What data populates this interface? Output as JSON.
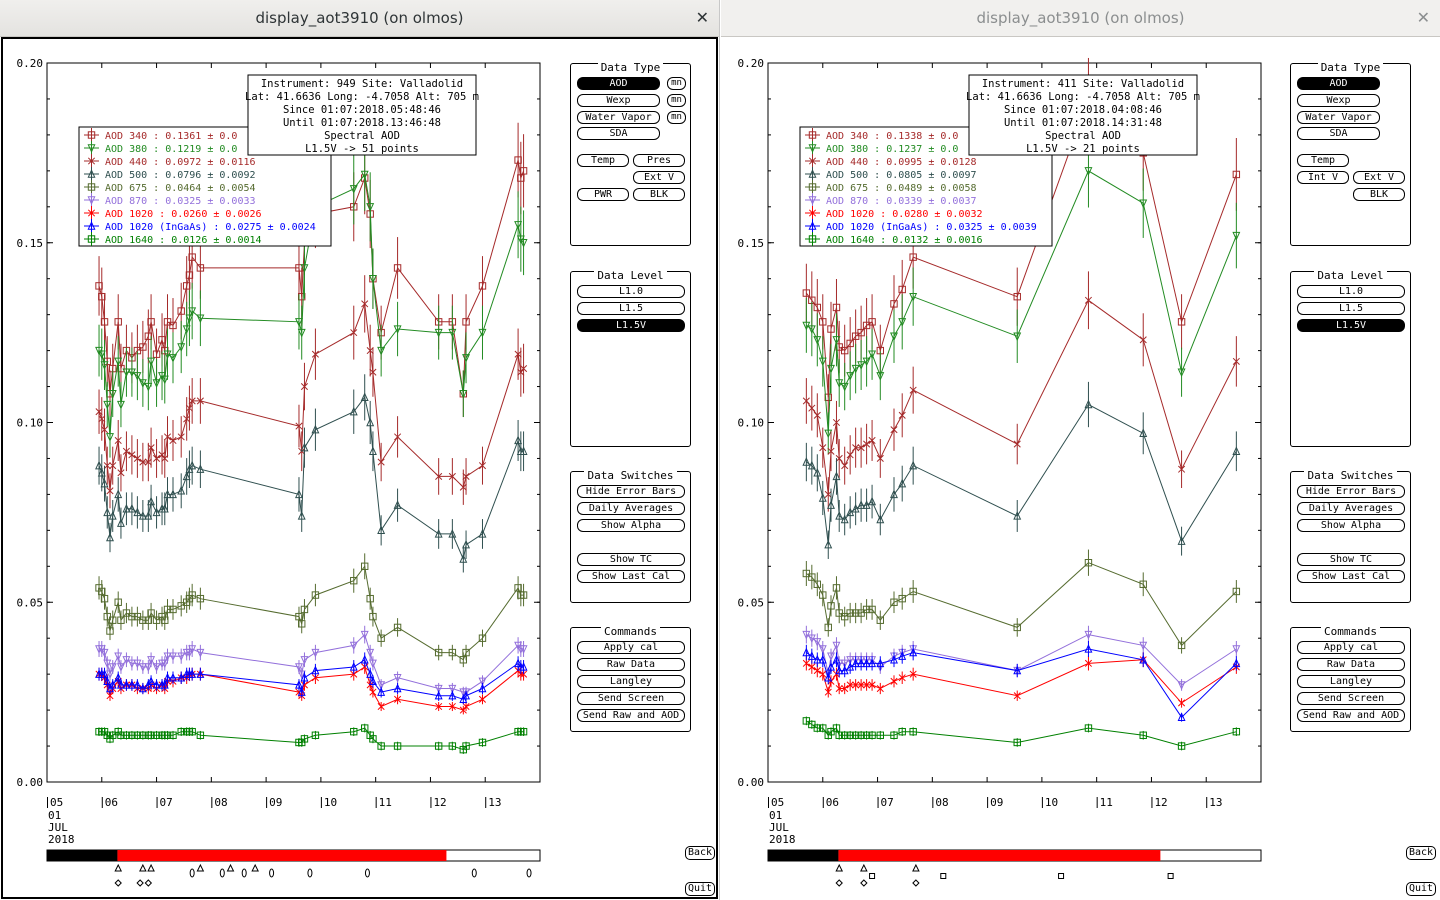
{
  "windows": [
    {
      "title": "display_aot3910 (on olmos)",
      "close_glyph": "✕",
      "info": {
        "line1": "Instrument: 949 Site: Valladolid",
        "line2": "Lat: 41.6636 Long: -4.7058 Alt: 705 m",
        "line3": "Since 01:07:2018.05:48:46",
        "line4": "Until 01:07:2018.13:46:48",
        "line5": "Spectral AOD",
        "line6": "L1.5V -> 51 points"
      },
      "legend": [
        {
          "name": "AOD 340",
          "stat": " : 0.1361 ± 0.0",
          "color": "#a52a2a",
          "marker": "square"
        },
        {
          "name": "AOD 380",
          "stat": " : 0.1219 ± 0.0",
          "color": "#228b22",
          "marker": "tri-down"
        },
        {
          "name": "AOD 440",
          "stat": " : 0.0972 ± 0.0116",
          "color": "#a52a2a",
          "marker": "cross"
        },
        {
          "name": "AOD 500",
          "stat": " : 0.0796 ± 0.0092",
          "color": "#2f4f4f",
          "marker": "tri-up"
        },
        {
          "name": "AOD 675",
          "stat": " : 0.0464 ± 0.0054",
          "color": "#556b2f",
          "marker": "square"
        },
        {
          "name": "AOD 870",
          "stat": " : 0.0325 ± 0.0033",
          "color": "#9370db",
          "marker": "tri-down"
        },
        {
          "name": "AOD 1020",
          "stat": " : 0.0260 ± 0.0026",
          "color": "#ff0000",
          "marker": "cross"
        },
        {
          "name": "AOD 1020 (InGaAs)",
          "stat": " : 0.0275 ± 0.0024",
          "color": "#0000ff",
          "marker": "tri-up"
        },
        {
          "name": "AOD 1640",
          "stat": " : 0.0126 ± 0.0014",
          "color": "#008000",
          "marker": "square"
        }
      ],
      "bar_red": [
        0.1429,
        0.8102
      ]
    },
    {
      "title": "display_aot3910 (on olmos)",
      "close_glyph": "✕",
      "info": {
        "line1": "Instrument: 411 Site: Valladolid",
        "line2": "Lat: 41.6636 Long: -4.7058 Alt: 705 m",
        "line3": "Since 01:07:2018.04:08:46",
        "line4": "Until 01:07:2018.14:31:48",
        "line5": "Spectral AOD",
        "line6": "L1.5V -> 21 points"
      },
      "legend": [
        {
          "name": "AOD 340",
          "stat": " : 0.1338 ± 0.0",
          "color": "#a52a2a",
          "marker": "square"
        },
        {
          "name": "AOD 380",
          "stat": " : 0.1237 ± 0.0",
          "color": "#228b22",
          "marker": "tri-down"
        },
        {
          "name": "AOD 440",
          "stat": " : 0.0995 ± 0.0128",
          "color": "#a52a2a",
          "marker": "cross"
        },
        {
          "name": "AOD 500",
          "stat": " : 0.0805 ± 0.0097",
          "color": "#2f4f4f",
          "marker": "tri-up"
        },
        {
          "name": "AOD 675",
          "stat": " : 0.0489 ± 0.0058",
          "color": "#556b2f",
          "marker": "square"
        },
        {
          "name": "AOD 870",
          "stat": " : 0.0339 ± 0.0037",
          "color": "#9370db",
          "marker": "tri-down"
        },
        {
          "name": "AOD 1020",
          "stat": " : 0.0280 ± 0.0032",
          "color": "#ff0000",
          "marker": "cross"
        },
        {
          "name": "AOD 1020 (InGaAs)",
          "stat": " : 0.0325 ± 0.0039",
          "color": "#0000ff",
          "marker": "tri-up"
        },
        {
          "name": "AOD 1640",
          "stat": " : 0.0132 ± 0.0016",
          "color": "#008000",
          "marker": "square"
        }
      ],
      "bar_red": [
        0.1429,
        0.7959
      ]
    }
  ],
  "axes": {
    "y_ticks": [
      "0.20",
      "0.15",
      "0.10",
      "0.05",
      "0.00"
    ],
    "x_ticks": [
      "05",
      "06",
      "07",
      "08",
      "09",
      "10",
      "11",
      "12",
      "13"
    ],
    "date_lines": [
      "01",
      "JUL",
      "2018"
    ]
  },
  "panels": {
    "data_type": {
      "title": "Data Type",
      "aod": "AOD",
      "wexp": "Wexp",
      "water_vapor": "Water Vapor",
      "sda": "SDA",
      "temp": "Temp",
      "pres": "Pres",
      "ext_v": "Ext V",
      "pwr": "PWR",
      "blk": "BLK",
      "int_v": "Int V",
      "mn": "mn"
    },
    "data_level": {
      "title": "Data Level",
      "l10": "L1.0",
      "l15": "L1.5",
      "l15v": "L1.5V"
    },
    "data_switches": {
      "title": "Data Switches",
      "hide_error_bars": "Hide Error Bars",
      "daily_averages": "Daily Averages",
      "show_alpha": "Show Alpha",
      "show_tc": "Show TC",
      "show_last_cal": "Show Last Cal"
    },
    "commands": {
      "title": "Commands",
      "apply_cal": "Apply cal",
      "raw_data": "Raw Data",
      "langley": "Langley",
      "send_screen": "Send Screen",
      "send_raw_aod": "Send Raw and AOD"
    }
  },
  "nav": {
    "back": "Back",
    "quit": "Quit"
  },
  "chart_data": [
    {
      "type": "line",
      "ylim": [
        0,
        0.2
      ],
      "xlim": [
        5,
        14
      ],
      "x": [
        5.95,
        6.0,
        6.05,
        6.1,
        6.15,
        6.2,
        6.3,
        6.35,
        6.45,
        6.55,
        6.65,
        6.75,
        6.85,
        6.9,
        7.0,
        7.1,
        7.15,
        7.2,
        7.3,
        7.45,
        7.55,
        7.6,
        7.65,
        7.8,
        9.6,
        9.65,
        9.7,
        9.9,
        10.6,
        10.8,
        10.9,
        10.95,
        11.1,
        11.4,
        12.15,
        12.4,
        12.6,
        12.65,
        12.95,
        13.6,
        13.65,
        13.7
      ],
      "series": [
        {
          "name": "AOD 340",
          "color": "#a52a2a",
          "marker": "square",
          "values": [
            0.138,
            0.135,
            0.128,
            0.117,
            0.108,
            0.115,
            0.128,
            0.115,
            0.12,
            0.118,
            0.12,
            0.121,
            0.124,
            0.128,
            0.119,
            0.123,
            0.12,
            0.128,
            0.127,
            0.131,
            0.138,
            0.141,
            0.146,
            0.143,
            0.143,
            0.135,
            0.15,
            0.158,
            0.16,
            0.168,
            0.158,
            0.14,
            0.125,
            0.143,
            0.128,
            0.128,
            0.108,
            0.128,
            0.138,
            0.173,
            0.168,
            0.17
          ]
        },
        {
          "name": "AOD 380",
          "color": "#228b22",
          "marker": "tri-down",
          "values": [
            0.12,
            0.119,
            0.116,
            0.105,
            0.096,
            0.108,
            0.117,
            0.105,
            0.114,
            0.114,
            0.113,
            0.111,
            0.11,
            0.117,
            0.111,
            0.113,
            0.112,
            0.119,
            0.118,
            0.121,
            0.126,
            0.129,
            0.131,
            0.129,
            0.128,
            0.125,
            0.143,
            0.16,
            0.165,
            0.169,
            0.16,
            0.14,
            0.12,
            0.126,
            0.125,
            0.125,
            0.108,
            0.118,
            0.125,
            0.155,
            0.151,
            0.15
          ]
        },
        {
          "name": "AOD 440",
          "color": "#a52a2a",
          "marker": "cross",
          "values": [
            0.103,
            0.101,
            0.098,
            0.088,
            0.081,
            0.088,
            0.095,
            0.086,
            0.092,
            0.091,
            0.09,
            0.089,
            0.089,
            0.093,
            0.09,
            0.091,
            0.09,
            0.096,
            0.095,
            0.096,
            0.101,
            0.104,
            0.106,
            0.106,
            0.099,
            0.092,
            0.11,
            0.119,
            0.125,
            0.133,
            0.12,
            0.114,
            0.089,
            0.096,
            0.085,
            0.085,
            0.082,
            0.085,
            0.088,
            0.119,
            0.114,
            0.115
          ]
        },
        {
          "name": "AOD 500",
          "color": "#2f4f4f",
          "marker": "tri-up",
          "values": [
            0.088,
            0.086,
            0.083,
            0.075,
            0.068,
            0.074,
            0.08,
            0.072,
            0.076,
            0.076,
            0.075,
            0.074,
            0.074,
            0.078,
            0.075,
            0.076,
            0.076,
            0.08,
            0.08,
            0.081,
            0.085,
            0.087,
            0.088,
            0.087,
            0.08,
            0.074,
            0.093,
            0.098,
            0.103,
            0.107,
            0.1,
            0.092,
            0.07,
            0.077,
            0.069,
            0.069,
            0.062,
            0.066,
            0.069,
            0.095,
            0.092,
            0.092
          ]
        },
        {
          "name": "AOD 675",
          "color": "#556b2f",
          "marker": "square",
          "values": [
            0.054,
            0.053,
            0.051,
            0.046,
            0.042,
            0.045,
            0.05,
            0.045,
            0.047,
            0.046,
            0.046,
            0.045,
            0.045,
            0.047,
            0.045,
            0.046,
            0.045,
            0.048,
            0.048,
            0.049,
            0.05,
            0.051,
            0.052,
            0.051,
            0.046,
            0.044,
            0.048,
            0.052,
            0.056,
            0.06,
            0.051,
            0.046,
            0.04,
            0.043,
            0.036,
            0.036,
            0.034,
            0.036,
            0.04,
            0.054,
            0.052,
            0.052
          ]
        },
        {
          "name": "AOD 870",
          "color": "#9370db",
          "marker": "tri-down",
          "values": [
            0.037,
            0.037,
            0.036,
            0.033,
            0.03,
            0.032,
            0.035,
            0.032,
            0.034,
            0.033,
            0.033,
            0.032,
            0.032,
            0.034,
            0.032,
            0.033,
            0.033,
            0.035,
            0.035,
            0.035,
            0.036,
            0.036,
            0.037,
            0.036,
            0.032,
            0.03,
            0.034,
            0.036,
            0.038,
            0.041,
            0.036,
            0.033,
            0.027,
            0.029,
            0.026,
            0.026,
            0.025,
            0.025,
            0.028,
            0.038,
            0.037,
            0.037
          ]
        },
        {
          "name": "AOD 1020",
          "color": "#ff0000",
          "marker": "cross",
          "values": [
            0.03,
            0.03,
            0.029,
            0.027,
            0.024,
            0.026,
            0.028,
            0.026,
            0.027,
            0.027,
            0.026,
            0.026,
            0.026,
            0.027,
            0.026,
            0.027,
            0.026,
            0.028,
            0.028,
            0.029,
            0.029,
            0.03,
            0.03,
            0.03,
            0.025,
            0.024,
            0.027,
            0.029,
            0.03,
            0.032,
            0.027,
            0.025,
            0.021,
            0.023,
            0.021,
            0.021,
            0.02,
            0.021,
            0.023,
            0.031,
            0.03,
            0.03
          ]
        },
        {
          "name": "AOD 1020 (InGaAs)",
          "color": "#0000ff",
          "marker": "tri-up",
          "values": [
            0.03,
            0.03,
            0.03,
            0.028,
            0.026,
            0.027,
            0.029,
            0.027,
            0.027,
            0.027,
            0.027,
            0.026,
            0.027,
            0.028,
            0.027,
            0.027,
            0.027,
            0.029,
            0.029,
            0.029,
            0.03,
            0.03,
            0.03,
            0.03,
            0.027,
            0.025,
            0.029,
            0.031,
            0.032,
            0.034,
            0.03,
            0.028,
            0.025,
            0.026,
            0.024,
            0.024,
            0.023,
            0.024,
            0.026,
            0.033,
            0.032,
            0.032
          ]
        },
        {
          "name": "AOD 1640",
          "color": "#008000",
          "marker": "square",
          "values": [
            0.014,
            0.014,
            0.014,
            0.013,
            0.012,
            0.013,
            0.014,
            0.013,
            0.013,
            0.013,
            0.013,
            0.013,
            0.013,
            0.013,
            0.013,
            0.013,
            0.013,
            0.013,
            0.013,
            0.014,
            0.014,
            0.014,
            0.014,
            0.013,
            0.011,
            0.011,
            0.012,
            0.013,
            0.014,
            0.015,
            0.013,
            0.012,
            0.01,
            0.01,
            0.01,
            0.01,
            0.009,
            0.01,
            0.011,
            0.014,
            0.014,
            0.014
          ]
        }
      ]
    },
    {
      "type": "line",
      "ylim": [
        0,
        0.2
      ],
      "xlim": [
        5,
        14
      ],
      "x": [
        5.7,
        5.8,
        5.9,
        6.0,
        6.1,
        6.15,
        6.25,
        6.3,
        6.4,
        6.5,
        6.6,
        6.7,
        6.8,
        6.9,
        7.05,
        7.3,
        7.45,
        7.65,
        9.55,
        10.85,
        11.85,
        12.55,
        13.55
      ],
      "series": [
        {
          "name": "AOD 340",
          "color": "#a52a2a",
          "marker": "square",
          "values": [
            0.136,
            0.134,
            0.132,
            0.128,
            0.107,
            0.126,
            0.132,
            0.121,
            0.12,
            0.122,
            0.124,
            0.125,
            0.127,
            0.128,
            0.12,
            0.133,
            0.137,
            0.146,
            0.135,
            0.19,
            0.175,
            0.128,
            0.169
          ]
        },
        {
          "name": "AOD 380",
          "color": "#228b22",
          "marker": "tri-down",
          "values": [
            0.127,
            0.126,
            0.123,
            0.117,
            0.097,
            0.115,
            0.123,
            0.111,
            0.11,
            0.113,
            0.115,
            0.116,
            0.117,
            0.119,
            0.113,
            0.124,
            0.128,
            0.135,
            0.124,
            0.17,
            0.161,
            0.114,
            0.152
          ]
        },
        {
          "name": "AOD 440",
          "color": "#a52a2a",
          "marker": "cross",
          "values": [
            0.106,
            0.104,
            0.102,
            0.093,
            0.08,
            0.092,
            0.1,
            0.09,
            0.088,
            0.091,
            0.093,
            0.093,
            0.094,
            0.095,
            0.09,
            0.098,
            0.102,
            0.109,
            0.094,
            0.134,
            0.123,
            0.087,
            0.117
          ]
        },
        {
          "name": "AOD 500",
          "color": "#2f4f4f",
          "marker": "tri-up",
          "values": [
            0.089,
            0.088,
            0.086,
            0.079,
            0.066,
            0.077,
            0.085,
            0.074,
            0.073,
            0.075,
            0.076,
            0.077,
            0.077,
            0.078,
            0.073,
            0.08,
            0.083,
            0.088,
            0.074,
            0.105,
            0.097,
            0.067,
            0.092
          ]
        },
        {
          "name": "AOD 675",
          "color": "#556b2f",
          "marker": "square",
          "values": [
            0.058,
            0.057,
            0.055,
            0.052,
            0.043,
            0.049,
            0.054,
            0.047,
            0.046,
            0.047,
            0.047,
            0.047,
            0.048,
            0.048,
            0.045,
            0.05,
            0.051,
            0.053,
            0.043,
            0.061,
            0.055,
            0.038,
            0.053
          ]
        },
        {
          "name": "AOD 870",
          "color": "#9370db",
          "marker": "tri-down",
          "values": [
            0.041,
            0.04,
            0.039,
            0.037,
            0.03,
            0.035,
            0.038,
            0.033,
            0.033,
            0.034,
            0.034,
            0.034,
            0.034,
            0.034,
            0.032,
            0.035,
            0.036,
            0.037,
            0.031,
            0.041,
            0.038,
            0.027,
            0.037
          ]
        },
        {
          "name": "AOD 1020",
          "color": "#ff0000",
          "marker": "cross",
          "values": [
            0.033,
            0.032,
            0.031,
            0.03,
            0.025,
            0.028,
            0.03,
            0.026,
            0.026,
            0.027,
            0.027,
            0.027,
            0.027,
            0.027,
            0.026,
            0.028,
            0.029,
            0.03,
            0.024,
            0.033,
            0.034,
            0.022,
            0.032
          ]
        },
        {
          "name": "AOD 1020 (InGaAs)",
          "color": "#0000ff",
          "marker": "tri-up",
          "values": [
            0.036,
            0.035,
            0.034,
            0.034,
            0.029,
            0.032,
            0.034,
            0.031,
            0.031,
            0.032,
            0.033,
            0.033,
            0.033,
            0.033,
            0.033,
            0.034,
            0.035,
            0.036,
            0.031,
            0.037,
            0.034,
            0.018,
            0.033
          ]
        },
        {
          "name": "AOD 1640",
          "color": "#008000",
          "marker": "square",
          "values": [
            0.017,
            0.016,
            0.015,
            0.015,
            0.013,
            0.014,
            0.015,
            0.013,
            0.013,
            0.013,
            0.013,
            0.013,
            0.013,
            0.013,
            0.013,
            0.013,
            0.014,
            0.014,
            0.011,
            0.015,
            0.013,
            0.01,
            0.014
          ]
        }
      ]
    }
  ]
}
